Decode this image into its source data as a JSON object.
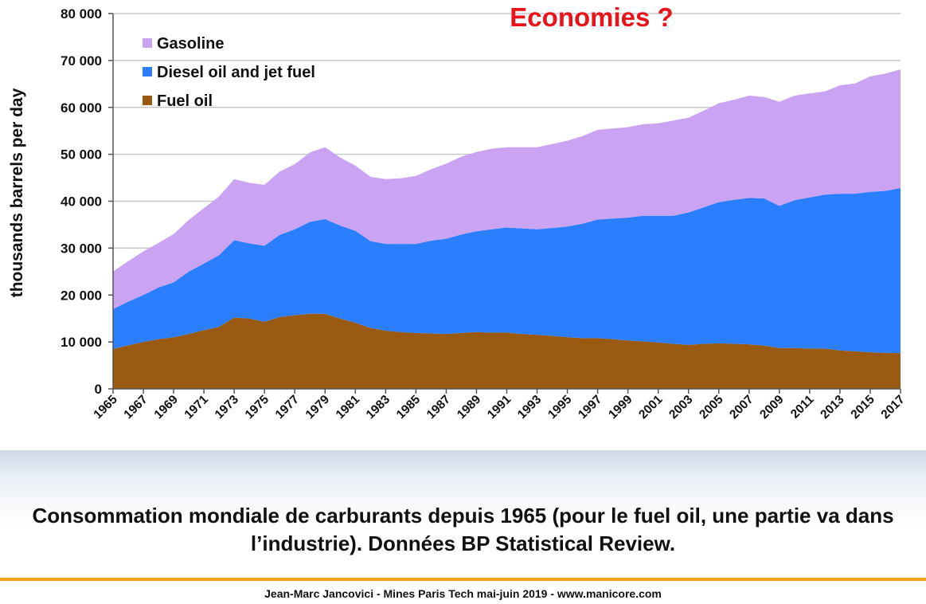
{
  "chart_data": {
    "type": "area",
    "stacked": true,
    "title": "Economies ?",
    "ylabel": "thousands barrels per day",
    "xlabel": "",
    "ylim": [
      0,
      80000
    ],
    "yticks": [
      0,
      10000,
      20000,
      30000,
      40000,
      50000,
      60000,
      70000,
      80000
    ],
    "ytick_labels": [
      "0",
      "10 000",
      "20 000",
      "30 000",
      "40 000",
      "50 000",
      "60 000",
      "70 000",
      "80 000"
    ],
    "xticks": [
      "1965",
      "1967",
      "1969",
      "1971",
      "1973",
      "1975",
      "1977",
      "1979",
      "1981",
      "1983",
      "1985",
      "1987",
      "1989",
      "1991",
      "1993",
      "1995",
      "1997",
      "1999",
      "2001",
      "2003",
      "2005",
      "2007",
      "2009",
      "2011",
      "2013",
      "2015",
      "2017"
    ],
    "grid": "horizontal",
    "legend_position": "top-left",
    "x": [
      1965,
      1966,
      1967,
      1968,
      1969,
      1970,
      1971,
      1972,
      1973,
      1974,
      1975,
      1976,
      1977,
      1978,
      1979,
      1980,
      1981,
      1982,
      1983,
      1984,
      1985,
      1986,
      1987,
      1988,
      1989,
      1990,
      1991,
      1992,
      1993,
      1994,
      1995,
      1996,
      1997,
      1998,
      1999,
      2000,
      2001,
      2002,
      2003,
      2004,
      2005,
      2006,
      2007,
      2008,
      2009,
      2010,
      2011,
      2012,
      2013,
      2014,
      2015,
      2016,
      2017
    ],
    "series": [
      {
        "name": "Fuel oil",
        "color": "#9a5a12",
        "values": [
          8500,
          9300,
          10000,
          10600,
          11000,
          11700,
          12500,
          13200,
          15200,
          15000,
          14300,
          15300,
          15700,
          16000,
          16000,
          15000,
          14100,
          13000,
          12400,
          12100,
          11900,
          11800,
          11700,
          11900,
          12100,
          12000,
          12000,
          11700,
          11500,
          11300,
          11000,
          10800,
          10800,
          10600,
          10300,
          10100,
          9900,
          9600,
          9400,
          9600,
          9700,
          9600,
          9500,
          9200,
          8700,
          8700,
          8600,
          8600,
          8200,
          8000,
          7800,
          7700,
          7600
        ]
      },
      {
        "name": "Diesel oil and jet fuel",
        "color": "#2b7fff",
        "values": [
          8500,
          9300,
          10000,
          11000,
          11700,
          13300,
          14200,
          15300,
          16500,
          16000,
          16200,
          17500,
          18300,
          19600,
          20200,
          19800,
          19600,
          18500,
          18500,
          18800,
          19000,
          19800,
          20300,
          21000,
          21500,
          22000,
          22400,
          22500,
          22500,
          23000,
          23600,
          24400,
          25300,
          25700,
          26200,
          26800,
          27000,
          27300,
          28200,
          29100,
          30100,
          30700,
          31200,
          31400,
          30300,
          31500,
          32200,
          32800,
          33400,
          33600,
          34200,
          34500,
          35200
        ]
      },
      {
        "name": "Gasoline",
        "color": "#caa4f2",
        "values": [
          8000,
          8600,
          9300,
          9500,
          10300,
          11000,
          11800,
          12500,
          13000,
          12900,
          13000,
          13500,
          13900,
          14800,
          15300,
          14500,
          13900,
          13700,
          13800,
          14000,
          14500,
          15200,
          16000,
          16600,
          16900,
          17200,
          17100,
          17300,
          17500,
          17900,
          18300,
          18700,
          19100,
          19200,
          19300,
          19500,
          19700,
          20300,
          20200,
          20600,
          21100,
          21300,
          21800,
          21600,
          22200,
          22300,
          22200,
          22000,
          23100,
          23500,
          24600,
          25000,
          25300
        ]
      }
    ]
  },
  "caption": "Consommation mondiale de carburants depuis 1965 (pour le fuel oil, une partie va dans l’industrie). Données BP Statistical Review.",
  "footer": "Jean-Marc Jancovici - Mines Paris Tech mai-juin 2019 - www.manicore.com",
  "colors": {
    "title": "#e8141a",
    "footer_line": "#f5a21c",
    "grid": "#c8c8c8"
  }
}
